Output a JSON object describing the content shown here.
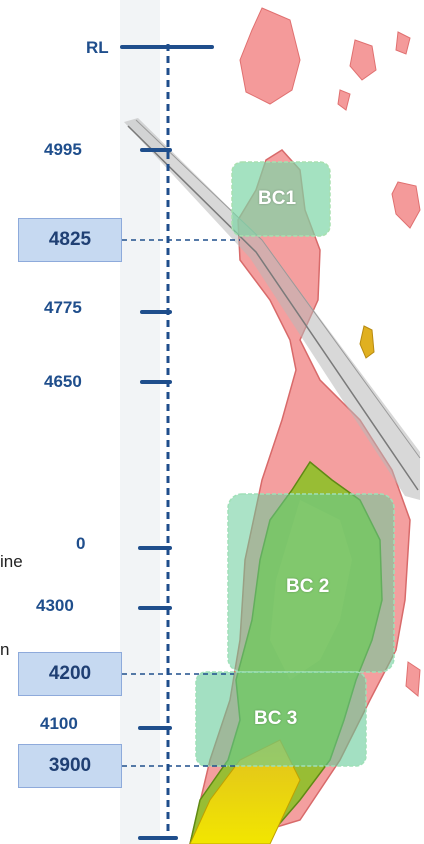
{
  "axis": {
    "title": "RL",
    "tick_labels": [
      "4995",
      "4775",
      "4650",
      "0",
      "4300",
      "4100"
    ],
    "boxed_levels": [
      "4825",
      "4200",
      "3900"
    ]
  },
  "zones": [
    {
      "label": "BC1"
    },
    {
      "label": "BC 2"
    },
    {
      "label": "BC 3"
    }
  ],
  "edge_text": [
    "ine",
    "n"
  ],
  "colors": {
    "axis": "#1f4e8c",
    "box_fill": "#c6d9f1",
    "ore_body": "#f08a8a",
    "mineralisation": "#8fbf2a",
    "zone_box": "#66cc99",
    "fault": "#9a9a9a"
  }
}
